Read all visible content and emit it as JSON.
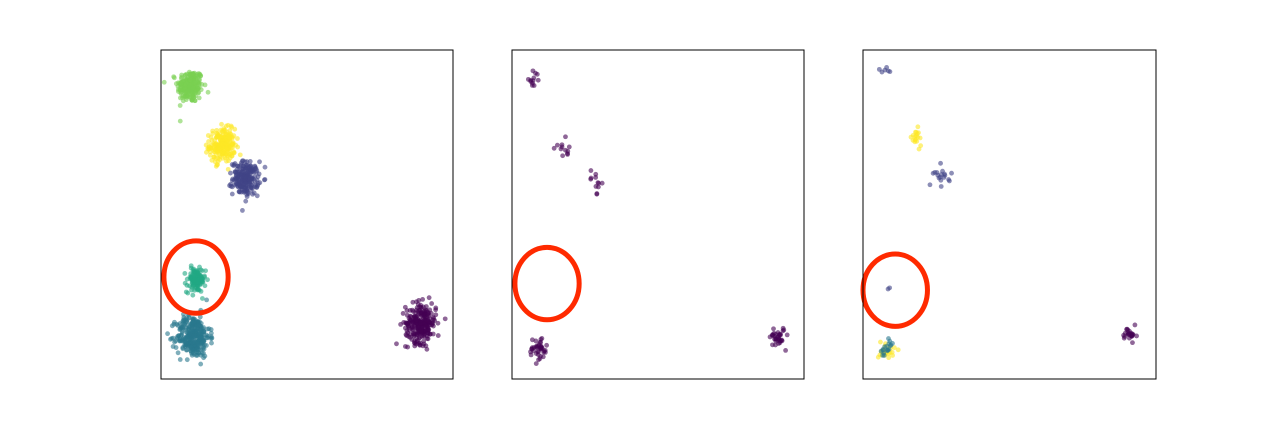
{
  "chart_data": [
    {
      "type": "scatter",
      "title": "",
      "xlabel": "",
      "ylabel": "",
      "ticks_visible": false,
      "grid": false,
      "legend": "none",
      "xlim": [
        0,
        100
      ],
      "ylim": [
        0,
        100
      ],
      "highlight_circle": {
        "cx": 12,
        "cy": 31,
        "r": 11,
        "color": "#ff2a00"
      },
      "clusters": [
        {
          "cx": 10,
          "cy": 89,
          "spread": 2.2,
          "count": 220,
          "color": "#7ad151"
        },
        {
          "cx": 21,
          "cy": 71,
          "spread": 2.2,
          "count": 220,
          "color": "#fde725"
        },
        {
          "cx": 29,
          "cy": 61,
          "spread": 2.2,
          "count": 220,
          "color": "#414487"
        },
        {
          "cx": 12,
          "cy": 30,
          "spread": 1.6,
          "count": 120,
          "color": "#22a884"
        },
        {
          "cx": 11,
          "cy": 13,
          "spread": 2.8,
          "count": 320,
          "color": "#2a788e"
        },
        {
          "cx": 89,
          "cy": 17,
          "spread": 2.6,
          "count": 260,
          "color": "#440154"
        }
      ]
    },
    {
      "type": "scatter",
      "title": "",
      "xlabel": "",
      "ylabel": "",
      "ticks_visible": false,
      "grid": false,
      "legend": "none",
      "xlim": [
        0,
        100
      ],
      "ylim": [
        0,
        100
      ],
      "highlight_circle": {
        "cx": 12,
        "cy": 29,
        "r": 11,
        "color": "#ff2a00"
      },
      "clusters": [
        {
          "cx": 7,
          "cy": 91,
          "spread": 1.0,
          "count": 12,
          "color": "#440154"
        },
        {
          "cx": 18,
          "cy": 69,
          "spread": 1.6,
          "count": 12,
          "color": "#440154"
        },
        {
          "cx": 29,
          "cy": 60,
          "spread": 1.6,
          "count": 12,
          "color": "#440154"
        },
        {
          "cx": 9,
          "cy": 9,
          "spread": 1.6,
          "count": 40,
          "color": "#440154"
        },
        {
          "cx": 91,
          "cy": 13,
          "spread": 1.3,
          "count": 35,
          "color": "#440154"
        }
      ]
    },
    {
      "type": "scatter",
      "title": "",
      "xlabel": "",
      "ylabel": "",
      "ticks_visible": false,
      "grid": false,
      "legend": "none",
      "xlim": [
        0,
        100
      ],
      "ylim": [
        0,
        100
      ],
      "highlight_circle": {
        "cx": 11,
        "cy": 27,
        "r": 11,
        "color": "#ff2a00"
      },
      "clusters": [
        {
          "cx": 8,
          "cy": 94,
          "spread": 1.0,
          "count": 6,
          "color": "#414487"
        },
        {
          "cx": 18,
          "cy": 73,
          "spread": 1.2,
          "count": 18,
          "color": "#fde725"
        },
        {
          "cx": 27,
          "cy": 62,
          "spread": 1.4,
          "count": 18,
          "color": "#414487"
        },
        {
          "cx": 9,
          "cy": 27,
          "spread": 0.5,
          "count": 2,
          "color": "#414487"
        },
        {
          "cx": 8,
          "cy": 9,
          "spread": 1.4,
          "count": 25,
          "color": "#fde725"
        },
        {
          "cx": 8,
          "cy": 9,
          "spread": 1.2,
          "count": 18,
          "color": "#2a788e"
        },
        {
          "cx": 91,
          "cy": 13,
          "spread": 1.2,
          "count": 25,
          "color": "#440154"
        }
      ]
    }
  ]
}
